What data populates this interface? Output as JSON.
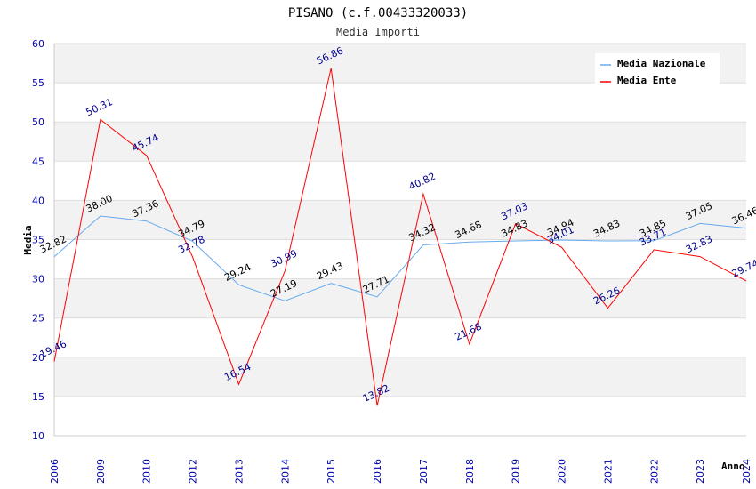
{
  "chart_data": {
    "type": "line",
    "title": "PISANO (c.f.00433320033)",
    "subtitle": "Media Importi",
    "xlabel": "Anno",
    "ylabel": "Media",
    "ylim": [
      10,
      60
    ],
    "yticks": [
      10,
      15,
      20,
      25,
      30,
      35,
      40,
      45,
      50,
      55,
      60
    ],
    "categories": [
      "2006",
      "2009",
      "2010",
      "2012",
      "2013",
      "2014",
      "2015",
      "2016",
      "2017",
      "2018",
      "2019",
      "2020",
      "2021",
      "2022",
      "2023",
      "2024"
    ],
    "series": [
      {
        "name": "Media Nazionale",
        "color": "#66aaee",
        "values": [
          32.82,
          38.0,
          37.36,
          34.79,
          29.24,
          27.19,
          29.43,
          27.71,
          34.32,
          34.68,
          34.83,
          34.94,
          34.83,
          34.85,
          37.05,
          36.46
        ],
        "labels": [
          "32.82",
          "38.00",
          "37.36",
          "34.79",
          "29.24",
          "27.19",
          "29.43",
          "27.71",
          "34.32",
          "34.68",
          "34.83",
          "34.94",
          "34.83",
          "34.85",
          "37.05",
          "36.46"
        ]
      },
      {
        "name": "Media Ente",
        "color": "#ff0000",
        "values": [
          19.46,
          50.31,
          45.74,
          32.78,
          16.54,
          30.99,
          56.86,
          13.82,
          40.82,
          21.68,
          37.03,
          34.01,
          26.26,
          33.71,
          32.83,
          29.74
        ],
        "labels": [
          "19.46",
          "50.31",
          "45.74",
          "32.78",
          "16.54",
          "30.99",
          "56.86",
          "13.82",
          "40.82",
          "21.68",
          "37.03",
          "34.01",
          "26.26",
          "33.71",
          "32.83",
          "29.74"
        ]
      }
    ],
    "legend": "top-right",
    "grid": true
  }
}
